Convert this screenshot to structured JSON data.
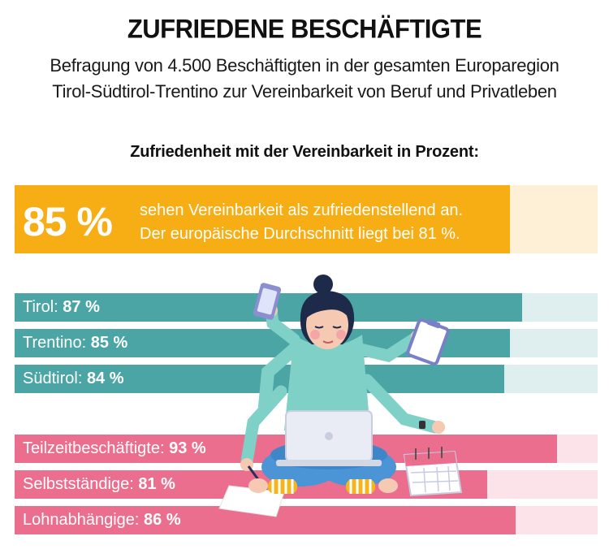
{
  "title": "ZUFRIEDENE BESCHÄFTIGTE",
  "subtitle_line1": "Befragung von 4.500 Beschäftigten in der gesamten Europaregion",
  "subtitle_line2": "Tirol-Südtirol-Trentino zur Vereinbarkeit von Beruf und Privatleben",
  "section_heading": "Zufriedenheit mit der Vereinbarkeit in Prozent:",
  "highlight": {
    "value_label": "85 %",
    "value": 85,
    "text_line1": "sehen Vereinbarkeit als zufriedenstellend an.",
    "text_line2": "Der europäische Durchschnitt liegt bei 81 %."
  },
  "chart_data": {
    "type": "bar",
    "orientation": "horizontal",
    "xlim": [
      0,
      100
    ],
    "unit": "%",
    "groups": [
      {
        "color": "#4ba5a5",
        "track_color": "#dfeeee",
        "categories": [
          "Tirol",
          "Trentino",
          "Südtirol"
        ],
        "values": [
          87,
          85,
          84
        ],
        "value_labels": [
          "87 %",
          "85 %",
          "84 %"
        ]
      },
      {
        "color": "#ec6e8e",
        "track_color": "#fbe3e9",
        "categories": [
          "Teilzeitbeschäftigte",
          "Selbstständige",
          "Lohnabhängige"
        ],
        "values": [
          93,
          81,
          86
        ],
        "value_labels": [
          "93 %",
          "81 %",
          "86 %"
        ]
      }
    ]
  },
  "colors": {
    "highlight": "#f7ad14",
    "highlight_track": "#fdf0d6"
  }
}
